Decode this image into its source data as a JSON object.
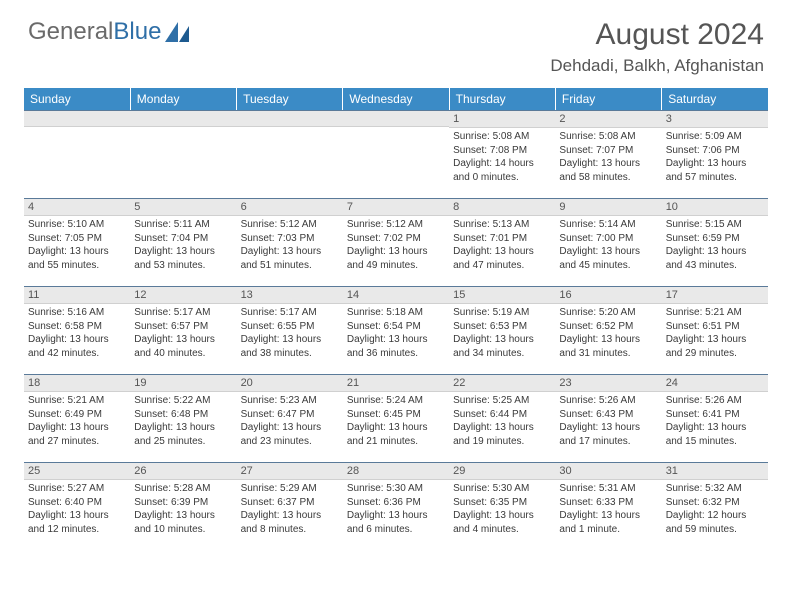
{
  "logo": {
    "text_gray": "General",
    "text_blue": "Blue"
  },
  "title": "August 2024",
  "location": "Dehdadi, Balkh, Afghanistan",
  "colors": {
    "header_bg": "#3b8bc6",
    "header_text": "#ffffff",
    "daynum_bg": "#e9e9e9",
    "daynum_border_top": "#5a7a99",
    "body_text": "#3a3a3a",
    "title_text": "#555555",
    "logo_gray": "#6a6a6a",
    "logo_blue": "#2f6fa7"
  },
  "day_names": [
    "Sunday",
    "Monday",
    "Tuesday",
    "Wednesday",
    "Thursday",
    "Friday",
    "Saturday"
  ],
  "weeks": [
    [
      {
        "num": "",
        "sunrise": "",
        "sunset": "",
        "daylight": ""
      },
      {
        "num": "",
        "sunrise": "",
        "sunset": "",
        "daylight": ""
      },
      {
        "num": "",
        "sunrise": "",
        "sunset": "",
        "daylight": ""
      },
      {
        "num": "",
        "sunrise": "",
        "sunset": "",
        "daylight": ""
      },
      {
        "num": "1",
        "sunrise": "Sunrise: 5:08 AM",
        "sunset": "Sunset: 7:08 PM",
        "daylight": "Daylight: 14 hours and 0 minutes."
      },
      {
        "num": "2",
        "sunrise": "Sunrise: 5:08 AM",
        "sunset": "Sunset: 7:07 PM",
        "daylight": "Daylight: 13 hours and 58 minutes."
      },
      {
        "num": "3",
        "sunrise": "Sunrise: 5:09 AM",
        "sunset": "Sunset: 7:06 PM",
        "daylight": "Daylight: 13 hours and 57 minutes."
      }
    ],
    [
      {
        "num": "4",
        "sunrise": "Sunrise: 5:10 AM",
        "sunset": "Sunset: 7:05 PM",
        "daylight": "Daylight: 13 hours and 55 minutes."
      },
      {
        "num": "5",
        "sunrise": "Sunrise: 5:11 AM",
        "sunset": "Sunset: 7:04 PM",
        "daylight": "Daylight: 13 hours and 53 minutes."
      },
      {
        "num": "6",
        "sunrise": "Sunrise: 5:12 AM",
        "sunset": "Sunset: 7:03 PM",
        "daylight": "Daylight: 13 hours and 51 minutes."
      },
      {
        "num": "7",
        "sunrise": "Sunrise: 5:12 AM",
        "sunset": "Sunset: 7:02 PM",
        "daylight": "Daylight: 13 hours and 49 minutes."
      },
      {
        "num": "8",
        "sunrise": "Sunrise: 5:13 AM",
        "sunset": "Sunset: 7:01 PM",
        "daylight": "Daylight: 13 hours and 47 minutes."
      },
      {
        "num": "9",
        "sunrise": "Sunrise: 5:14 AM",
        "sunset": "Sunset: 7:00 PM",
        "daylight": "Daylight: 13 hours and 45 minutes."
      },
      {
        "num": "10",
        "sunrise": "Sunrise: 5:15 AM",
        "sunset": "Sunset: 6:59 PM",
        "daylight": "Daylight: 13 hours and 43 minutes."
      }
    ],
    [
      {
        "num": "11",
        "sunrise": "Sunrise: 5:16 AM",
        "sunset": "Sunset: 6:58 PM",
        "daylight": "Daylight: 13 hours and 42 minutes."
      },
      {
        "num": "12",
        "sunrise": "Sunrise: 5:17 AM",
        "sunset": "Sunset: 6:57 PM",
        "daylight": "Daylight: 13 hours and 40 minutes."
      },
      {
        "num": "13",
        "sunrise": "Sunrise: 5:17 AM",
        "sunset": "Sunset: 6:55 PM",
        "daylight": "Daylight: 13 hours and 38 minutes."
      },
      {
        "num": "14",
        "sunrise": "Sunrise: 5:18 AM",
        "sunset": "Sunset: 6:54 PM",
        "daylight": "Daylight: 13 hours and 36 minutes."
      },
      {
        "num": "15",
        "sunrise": "Sunrise: 5:19 AM",
        "sunset": "Sunset: 6:53 PM",
        "daylight": "Daylight: 13 hours and 34 minutes."
      },
      {
        "num": "16",
        "sunrise": "Sunrise: 5:20 AM",
        "sunset": "Sunset: 6:52 PM",
        "daylight": "Daylight: 13 hours and 31 minutes."
      },
      {
        "num": "17",
        "sunrise": "Sunrise: 5:21 AM",
        "sunset": "Sunset: 6:51 PM",
        "daylight": "Daylight: 13 hours and 29 minutes."
      }
    ],
    [
      {
        "num": "18",
        "sunrise": "Sunrise: 5:21 AM",
        "sunset": "Sunset: 6:49 PM",
        "daylight": "Daylight: 13 hours and 27 minutes."
      },
      {
        "num": "19",
        "sunrise": "Sunrise: 5:22 AM",
        "sunset": "Sunset: 6:48 PM",
        "daylight": "Daylight: 13 hours and 25 minutes."
      },
      {
        "num": "20",
        "sunrise": "Sunrise: 5:23 AM",
        "sunset": "Sunset: 6:47 PM",
        "daylight": "Daylight: 13 hours and 23 minutes."
      },
      {
        "num": "21",
        "sunrise": "Sunrise: 5:24 AM",
        "sunset": "Sunset: 6:45 PM",
        "daylight": "Daylight: 13 hours and 21 minutes."
      },
      {
        "num": "22",
        "sunrise": "Sunrise: 5:25 AM",
        "sunset": "Sunset: 6:44 PM",
        "daylight": "Daylight: 13 hours and 19 minutes."
      },
      {
        "num": "23",
        "sunrise": "Sunrise: 5:26 AM",
        "sunset": "Sunset: 6:43 PM",
        "daylight": "Daylight: 13 hours and 17 minutes."
      },
      {
        "num": "24",
        "sunrise": "Sunrise: 5:26 AM",
        "sunset": "Sunset: 6:41 PM",
        "daylight": "Daylight: 13 hours and 15 minutes."
      }
    ],
    [
      {
        "num": "25",
        "sunrise": "Sunrise: 5:27 AM",
        "sunset": "Sunset: 6:40 PM",
        "daylight": "Daylight: 13 hours and 12 minutes."
      },
      {
        "num": "26",
        "sunrise": "Sunrise: 5:28 AM",
        "sunset": "Sunset: 6:39 PM",
        "daylight": "Daylight: 13 hours and 10 minutes."
      },
      {
        "num": "27",
        "sunrise": "Sunrise: 5:29 AM",
        "sunset": "Sunset: 6:37 PM",
        "daylight": "Daylight: 13 hours and 8 minutes."
      },
      {
        "num": "28",
        "sunrise": "Sunrise: 5:30 AM",
        "sunset": "Sunset: 6:36 PM",
        "daylight": "Daylight: 13 hours and 6 minutes."
      },
      {
        "num": "29",
        "sunrise": "Sunrise: 5:30 AM",
        "sunset": "Sunset: 6:35 PM",
        "daylight": "Daylight: 13 hours and 4 minutes."
      },
      {
        "num": "30",
        "sunrise": "Sunrise: 5:31 AM",
        "sunset": "Sunset: 6:33 PM",
        "daylight": "Daylight: 13 hours and 1 minute."
      },
      {
        "num": "31",
        "sunrise": "Sunrise: 5:32 AM",
        "sunset": "Sunset: 6:32 PM",
        "daylight": "Daylight: 12 hours and 59 minutes."
      }
    ]
  ]
}
